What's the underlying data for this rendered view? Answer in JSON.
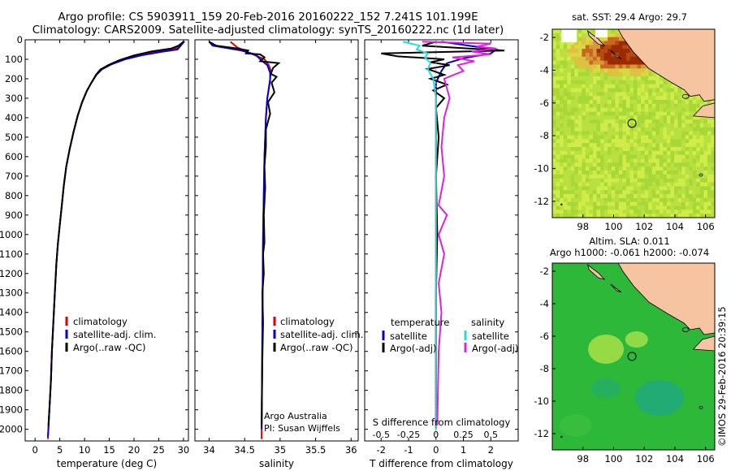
{
  "header": {
    "line1": "Argo profile: CS 5903911_159 20-Feb-2016 20160222_152 7.241S 101.199E",
    "line2": "Climatology: CARS2009. Satellite-adjusted climatology: synTS_20160222.nc (1d later)"
  },
  "colors": {
    "climatology": "#e00000",
    "satellite": "#0000e0",
    "argo": "#000000",
    "sat_temp": "#0000cc",
    "sat_sal": "#22dddd",
    "argo_sal": "#e020e0"
  },
  "chart_data": [
    {
      "type": "line",
      "id": "temperature",
      "xlabel": "temperature (deg C)",
      "xlim": [
        -2,
        31
      ],
      "ylim": [
        2060,
        0
      ],
      "xticks": [
        0,
        5,
        10,
        15,
        20,
        25,
        30
      ],
      "yticks": [
        0,
        100,
        200,
        300,
        400,
        500,
        600,
        700,
        800,
        900,
        1000,
        1100,
        1200,
        1300,
        1400,
        1500,
        1600,
        1700,
        1800,
        1900,
        2000
      ],
      "legend": [
        "climatology",
        "satellite-adj. clim.",
        "Argo(..raw -QC)"
      ],
      "series": [
        {
          "name": "climatology",
          "key": "climatology",
          "points": [
            [
              30,
              8
            ],
            [
              29.6,
              25
            ],
            [
              28.5,
              45
            ],
            [
              26,
              55
            ],
            [
              22.5,
              72
            ],
            [
              19,
              92
            ],
            [
              16,
              118
            ],
            [
              13.5,
              150
            ],
            [
              12.5,
              175
            ],
            [
              11.5,
              215
            ],
            [
              10.5,
              260
            ],
            [
              9.5,
              320
            ],
            [
              8.6,
              390
            ],
            [
              7.8,
              470
            ],
            [
              7,
              560
            ],
            [
              6.3,
              650
            ],
            [
              5.8,
              750
            ],
            [
              5.4,
              850
            ],
            [
              5,
              950
            ],
            [
              4.6,
              1050
            ],
            [
              4.3,
              1150
            ],
            [
              4,
              1300
            ],
            [
              3.7,
              1450
            ],
            [
              3.4,
              1600
            ],
            [
              3.2,
              1750
            ],
            [
              2.9,
              1900
            ],
            [
              2.6,
              2050
            ]
          ]
        },
        {
          "name": "satellite-adj. clim.",
          "key": "satellite",
          "points": [
            [
              30.2,
              8
            ],
            [
              29.6,
              25
            ],
            [
              28.8,
              50
            ],
            [
              25.5,
              62
            ],
            [
              21.5,
              80
            ],
            [
              18.2,
              100
            ],
            [
              15.5,
              125
            ],
            [
              13.5,
              152
            ],
            [
              12.4,
              180
            ],
            [
              11.4,
              220
            ],
            [
              10.4,
              265
            ],
            [
              9.5,
              322
            ],
            [
              8.6,
              392
            ],
            [
              7.8,
              472
            ],
            [
              7,
              562
            ],
            [
              6.3,
              652
            ],
            [
              5.8,
              752
            ],
            [
              5.4,
              852
            ],
            [
              5,
              952
            ],
            [
              4.6,
              1052
            ],
            [
              4.3,
              1152
            ],
            [
              4,
              1302
            ],
            [
              3.7,
              1452
            ],
            [
              3.4,
              1602
            ],
            [
              3.2,
              1752
            ],
            [
              2.9,
              1902
            ],
            [
              2.6,
              2040
            ]
          ]
        },
        {
          "name": "Argo(..raw -QC)",
          "key": "argo",
          "points": [
            [
              30,
              10
            ],
            [
              29,
              30
            ],
            [
              27.5,
              45
            ],
            [
              23.5,
              60
            ],
            [
              20,
              80
            ],
            [
              17,
              105
            ],
            [
              14.8,
              130
            ],
            [
              13.2,
              152
            ],
            [
              12.3,
              180
            ],
            [
              11.4,
              220
            ],
            [
              10.5,
              262
            ],
            [
              9.5,
              322
            ],
            [
              8.6,
              390
            ],
            [
              7.8,
              470
            ],
            [
              7,
              560
            ],
            [
              6.3,
              650
            ],
            [
              5.8,
              750
            ],
            [
              5.4,
              850
            ],
            [
              5,
              950
            ],
            [
              4.6,
              1050
            ],
            [
              4.3,
              1150
            ],
            [
              4,
              1300
            ],
            [
              3.7,
              1450
            ],
            [
              3.4,
              1600
            ],
            [
              3.2,
              1750
            ],
            [
              2.9,
              1900
            ],
            [
              2.7,
              1980
            ]
          ]
        }
      ]
    },
    {
      "type": "line",
      "id": "salinity",
      "xlabel": "salinity",
      "xlim": [
        33.8,
        36.1
      ],
      "ylim": [
        2060,
        0
      ],
      "xticks": [
        34,
        34.5,
        35,
        35.5,
        36
      ],
      "legend": [
        "climatology",
        "satellite-adj. clim.",
        "Argo(..raw -QC)"
      ],
      "annotation": [
        "Argo Australia",
        "PI: Susan Wijffels"
      ],
      "series": [
        {
          "name": "climatology",
          "key": "climatology",
          "points": [
            [
              34.3,
              10
            ],
            [
              34.4,
              40
            ],
            [
              34.65,
              80
            ],
            [
              34.78,
              100
            ],
            [
              34.84,
              130
            ],
            [
              34.87,
              160
            ],
            [
              34.86,
              200
            ],
            [
              34.82,
              300
            ],
            [
              34.8,
              400
            ],
            [
              34.78,
              600
            ],
            [
              34.76,
              1000
            ],
            [
              34.75,
              1500
            ],
            [
              34.74,
              2050
            ]
          ]
        },
        {
          "name": "satellite-adj. clim.",
          "key": "satellite",
          "points": [
            [
              34.0,
              10
            ],
            [
              34.05,
              30
            ],
            [
              34.45,
              55
            ],
            [
              34.65,
              75
            ],
            [
              34.72,
              100
            ],
            [
              34.82,
              130
            ],
            [
              34.86,
              170
            ],
            [
              34.86,
              210
            ],
            [
              34.82,
              300
            ],
            [
              34.8,
              400
            ],
            [
              34.78,
              600
            ],
            [
              34.76,
              1000
            ],
            [
              34.75,
              1500
            ],
            [
              34.74,
              2000
            ]
          ]
        },
        {
          "name": "Argo(..raw -QC)",
          "key": "argo",
          "points": [
            [
              34.0,
              10
            ],
            [
              34.1,
              30
            ],
            [
              34.4,
              45
            ],
            [
              34.55,
              55
            ],
            [
              34.52,
              70
            ],
            [
              34.72,
              75
            ],
            [
              34.78,
              90
            ],
            [
              34.72,
              110
            ],
            [
              34.98,
              120
            ],
            [
              34.9,
              145
            ],
            [
              34.87,
              175
            ],
            [
              34.95,
              190
            ],
            [
              34.88,
              220
            ],
            [
              34.92,
              270
            ],
            [
              34.83,
              320
            ],
            [
              34.86,
              380
            ],
            [
              34.8,
              460
            ],
            [
              34.8,
              550
            ],
            [
              34.78,
              650
            ],
            [
              34.79,
              760
            ],
            [
              34.77,
              900
            ],
            [
              34.78,
              1040
            ],
            [
              34.76,
              1100
            ],
            [
              34.77,
              1200
            ],
            [
              34.75,
              1300
            ],
            [
              34.76,
              1450
            ],
            [
              34.75,
              1650
            ],
            [
              34.74,
              1980
            ]
          ]
        }
      ]
    },
    {
      "type": "line",
      "id": "differences",
      "xlabel": "T difference from climatology",
      "xlabel_top": "S difference from climatology",
      "xlim": [
        -2.6,
        3.0
      ],
      "ylim": [
        2060,
        0
      ],
      "xticks": [
        -2,
        -1,
        0,
        1,
        2
      ],
      "top_tick_labels": [
        "-0.5",
        "-0.25",
        "0",
        "0.25",
        "0.5"
      ],
      "legend_left_title": "temperature",
      "legend_right_title": "salinity",
      "legend": [
        "satellite",
        "Argo(-adj)",
        "satellite",
        "Argo(-adj)"
      ],
      "series": [
        {
          "name": "satellite",
          "key": "sat_temp",
          "points": [
            [
              0.2,
              10
            ],
            [
              1.2,
              30
            ],
            [
              2.2,
              50
            ],
            [
              2.0,
              70
            ],
            [
              1.0,
              95
            ],
            [
              0.4,
              120
            ],
            [
              0.2,
              160
            ],
            [
              0,
              220
            ],
            [
              0,
              400
            ],
            [
              0,
              700
            ],
            [
              0,
              1000
            ],
            [
              0,
              1500
            ],
            [
              0,
              2000
            ]
          ]
        },
        {
          "name": "Argo(-adj)",
          "key": "argo",
          "points": [
            [
              0,
              10
            ],
            [
              -0.5,
              30
            ],
            [
              1.2,
              45
            ],
            [
              2.5,
              55
            ],
            [
              -2.0,
              70
            ],
            [
              -1.4,
              85
            ],
            [
              0.3,
              100
            ],
            [
              -0.2,
              115
            ],
            [
              0.5,
              130
            ],
            [
              -0.3,
              150
            ],
            [
              0.3,
              180
            ],
            [
              -0.2,
              200
            ],
            [
              0.4,
              230
            ],
            [
              -0.1,
              260
            ],
            [
              0.3,
              300
            ],
            [
              0,
              350
            ],
            [
              0.1,
              500
            ],
            [
              0,
              700
            ],
            [
              0.05,
              1000
            ],
            [
              0,
              1300
            ],
            [
              0,
              1600
            ],
            [
              0,
              1980
            ]
          ]
        },
        {
          "name": "satellite",
          "key": "sat_sal",
          "points": [
            [
              -1.2,
              10
            ],
            [
              -0.6,
              30
            ],
            [
              -0.7,
              50
            ],
            [
              -0.3,
              70
            ],
            [
              -0.4,
              90
            ],
            [
              -0.2,
              120
            ],
            [
              -0.3,
              150
            ],
            [
              -0.1,
              200
            ],
            [
              0,
              300
            ],
            [
              0,
              500
            ],
            [
              0,
              800
            ],
            [
              0,
              1100
            ],
            [
              0,
              1500
            ],
            [
              0,
              2000
            ]
          ]
        },
        {
          "name": "Argo(-adj)",
          "key": "argo_sal",
          "points": [
            [
              -0.5,
              10
            ],
            [
              2.0,
              20
            ],
            [
              1.5,
              35
            ],
            [
              2.2,
              45
            ],
            [
              1.3,
              60
            ],
            [
              2.0,
              75
            ],
            [
              0.6,
              90
            ],
            [
              1.4,
              110
            ],
            [
              0.8,
              130
            ],
            [
              1.0,
              160
            ],
            [
              0.3,
              200
            ],
            [
              0.5,
              300
            ],
            [
              0.3,
              400
            ],
            [
              0.2,
              550
            ],
            [
              0.3,
              700
            ],
            [
              0.1,
              850
            ],
            [
              0.4,
              900
            ],
            [
              0.1,
              1000
            ],
            [
              0.3,
              1100
            ],
            [
              0.1,
              1250
            ],
            [
              0.2,
              1400
            ],
            [
              0.1,
              1600
            ],
            [
              0.05,
              1980
            ]
          ]
        }
      ]
    },
    {
      "type": "heatmap",
      "id": "sst_map",
      "title": "sat. SST: 29.4  Argo: 29.7",
      "xticks": [
        98,
        100,
        102,
        104,
        106
      ],
      "yticks": [
        -2,
        -4,
        -6,
        -8,
        -10,
        -12
      ],
      "xlim": [
        96,
        106.6
      ],
      "ylim": [
        -13,
        -1.5
      ],
      "argo_position": [
        101.199,
        -7.241
      ]
    },
    {
      "type": "heatmap",
      "id": "sla_map",
      "title": "Altim. SLA: 0.011",
      "subtitle": "Argo h1000: -0.061  h2000: -0.074",
      "xticks": [
        98,
        100,
        102,
        104,
        106
      ],
      "yticks": [
        -2,
        -4,
        -6,
        -8,
        -10,
        -12
      ],
      "xlim": [
        96,
        106.6
      ],
      "ylim": [
        -13,
        -1.5
      ],
      "argo_position": [
        101.199,
        -7.241
      ]
    }
  ],
  "footer": {
    "credit": "©IMOS 29-Feb-2016 20:39:15"
  }
}
